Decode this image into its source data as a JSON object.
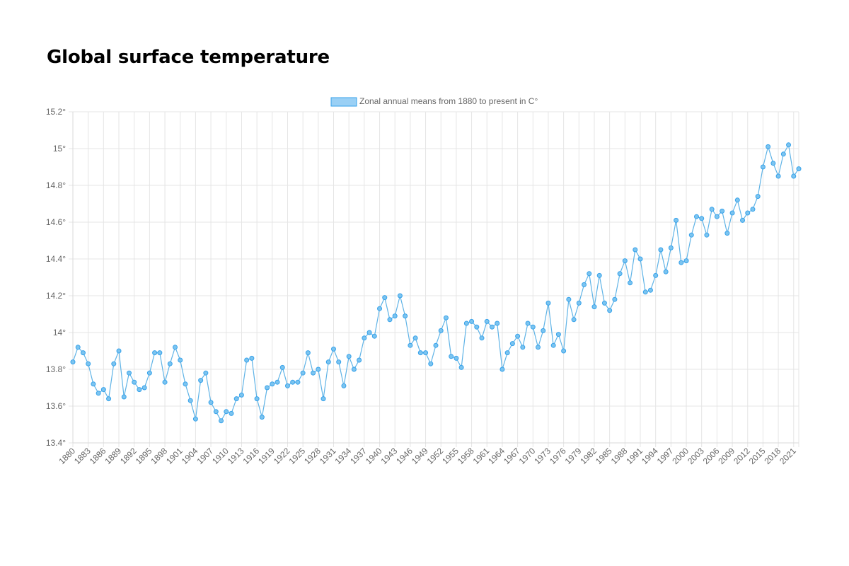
{
  "page": {
    "title": "Global surface temperature"
  },
  "chart_data": {
    "type": "line",
    "title": "",
    "xlabel": "",
    "ylabel": "",
    "y_tick_suffix": "°",
    "ylim": [
      13.4,
      15.2
    ],
    "y_ticks": [
      13.4,
      13.6,
      13.8,
      14,
      14.2,
      14.4,
      14.6,
      14.8,
      15,
      15.2
    ],
    "x_tick_step": 3,
    "grid": true,
    "legend_position": "top-center",
    "colors": {
      "line": "#5fb3e6",
      "point_fill": "#7cc4ef",
      "point_stroke": "#36a2eb",
      "legend_fill": "#9ad0f5",
      "legend_stroke": "#36a2eb",
      "grid": "#e5e5e5",
      "tick_text": "#666666"
    },
    "x": [
      1880,
      1881,
      1882,
      1883,
      1884,
      1885,
      1886,
      1887,
      1888,
      1889,
      1890,
      1891,
      1892,
      1893,
      1894,
      1895,
      1896,
      1897,
      1898,
      1899,
      1900,
      1901,
      1902,
      1903,
      1904,
      1905,
      1906,
      1907,
      1908,
      1909,
      1910,
      1911,
      1912,
      1913,
      1914,
      1915,
      1916,
      1917,
      1918,
      1919,
      1920,
      1921,
      1922,
      1923,
      1924,
      1925,
      1926,
      1927,
      1928,
      1929,
      1930,
      1931,
      1932,
      1933,
      1934,
      1935,
      1936,
      1937,
      1938,
      1939,
      1940,
      1941,
      1942,
      1943,
      1944,
      1945,
      1946,
      1947,
      1948,
      1949,
      1950,
      1951,
      1952,
      1953,
      1954,
      1955,
      1956,
      1957,
      1958,
      1959,
      1960,
      1961,
      1962,
      1963,
      1964,
      1965,
      1966,
      1967,
      1968,
      1969,
      1970,
      1971,
      1972,
      1973,
      1974,
      1975,
      1976,
      1977,
      1978,
      1979,
      1980,
      1981,
      1982,
      1983,
      1984,
      1985,
      1986,
      1987,
      1988,
      1989,
      1990,
      1991,
      1992,
      1993,
      1994,
      1995,
      1996,
      1997,
      1998,
      1999,
      2000,
      2001,
      2002,
      2003,
      2004,
      2005,
      2006,
      2007,
      2008,
      2009,
      2010,
      2011,
      2012,
      2013,
      2014,
      2015,
      2016,
      2017,
      2018,
      2019,
      2020,
      2021,
      2022
    ],
    "series": [
      {
        "name": "Zonal annual means from 1880 to present in C°",
        "values": [
          13.84,
          13.92,
          13.89,
          13.83,
          13.72,
          13.67,
          13.69,
          13.64,
          13.83,
          13.9,
          13.65,
          13.78,
          13.73,
          13.69,
          13.7,
          13.78,
          13.89,
          13.89,
          13.73,
          13.83,
          13.92,
          13.85,
          13.72,
          13.63,
          13.53,
          13.74,
          13.78,
          13.62,
          13.57,
          13.52,
          13.57,
          13.56,
          13.64,
          13.66,
          13.85,
          13.86,
          13.64,
          13.54,
          13.7,
          13.72,
          13.73,
          13.81,
          13.71,
          13.73,
          13.73,
          13.78,
          13.89,
          13.78,
          13.8,
          13.64,
          13.84,
          13.91,
          13.84,
          13.71,
          13.87,
          13.8,
          13.85,
          13.97,
          14.0,
          13.98,
          14.13,
          14.19,
          14.07,
          14.09,
          14.2,
          14.09,
          13.93,
          13.97,
          13.89,
          13.89,
          13.83,
          13.93,
          14.01,
          14.08,
          13.87,
          13.86,
          13.81,
          14.05,
          14.06,
          14.03,
          13.97,
          14.06,
          14.03,
          14.05,
          13.8,
          13.89,
          13.94,
          13.98,
          13.92,
          14.05,
          14.03,
          13.92,
          14.01,
          14.16,
          13.93,
          13.99,
          13.9,
          14.18,
          14.07,
          14.16,
          14.26,
          14.32,
          14.14,
          14.31,
          14.16,
          14.12,
          14.18,
          14.32,
          14.39,
          14.27,
          14.45,
          14.4,
          14.22,
          14.23,
          14.31,
          14.45,
          14.33,
          14.46,
          14.61,
          14.38,
          14.39,
          14.53,
          14.63,
          14.62,
          14.53,
          14.67,
          14.63,
          14.66,
          14.54,
          14.65,
          14.72,
          14.61,
          14.65,
          14.67,
          14.74,
          14.9,
          15.01,
          14.92,
          14.85,
          14.97,
          15.02,
          14.85,
          14.89
        ]
      }
    ]
  }
}
